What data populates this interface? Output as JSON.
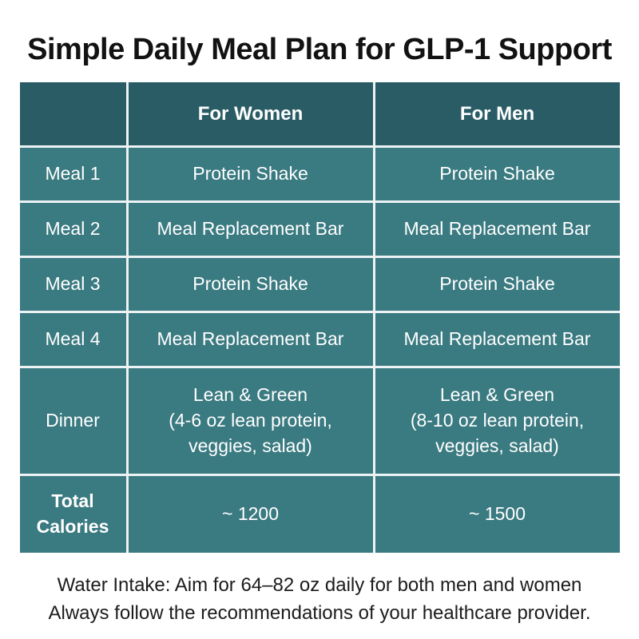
{
  "title": "Simple Daily Meal Plan for GLP-1 Support",
  "colors": {
    "header_bg": "#2a5c66",
    "cell_bg": "#3a7a81",
    "grid_line": "#edf3f4",
    "table_text": "#ffffff",
    "title_text": "#121212",
    "footer_text": "#1c1c1c"
  },
  "table": {
    "columns": [
      "",
      "For Women",
      "For Men"
    ],
    "rows": [
      {
        "label": "Meal 1",
        "women": "Protein Shake",
        "men": "Protein Shake"
      },
      {
        "label": "Meal 2",
        "women": "Meal Replacement Bar",
        "men": "Meal Replacement Bar"
      },
      {
        "label": "Meal 3",
        "women": "Protein Shake",
        "men": "Protein Shake"
      },
      {
        "label": "Meal 4",
        "women": "Meal Replacement Bar",
        "men": "Meal Replacement Bar"
      },
      {
        "label": "Dinner",
        "women": "Lean & Green\n(4-6 oz lean protein,\nveggies, salad)",
        "men": "Lean & Green\n(8-10 oz lean protein,\nveggies, salad)"
      },
      {
        "label": "Total\nCalories",
        "women": "~ 1200",
        "men": "~ 1500"
      }
    ]
  },
  "footer": {
    "line1": "Water Intake: Aim for 64–82 oz daily for both men and women",
    "line2": "Always follow the recommendations of your healthcare provider."
  },
  "chart_data": {
    "type": "table",
    "title": "Simple Daily Meal Plan for GLP-1 Support",
    "columns": [
      "",
      "For Women",
      "For Men"
    ],
    "rows": [
      [
        "Meal 1",
        "Protein Shake",
        "Protein Shake"
      ],
      [
        "Meal 2",
        "Meal Replacement Bar",
        "Meal Replacement Bar"
      ],
      [
        "Meal 3",
        "Protein Shake",
        "Protein Shake"
      ],
      [
        "Meal 4",
        "Meal Replacement Bar",
        "Meal Replacement Bar"
      ],
      [
        "Dinner",
        "Lean & Green (4-6 oz lean protein, veggies, salad)",
        "Lean & Green (8-10 oz lean protein, veggies, salad)"
      ],
      [
        "Total Calories",
        "~ 1200",
        "~ 1500"
      ]
    ],
    "total_calories": {
      "women": 1200,
      "men": 1500
    }
  }
}
